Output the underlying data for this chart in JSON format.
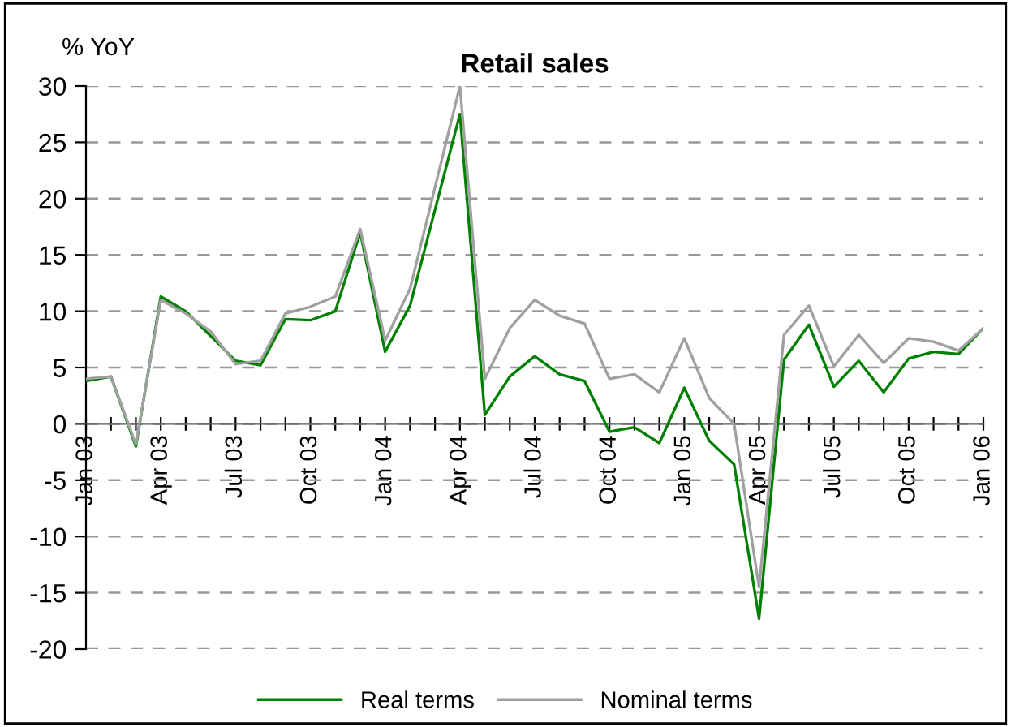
{
  "chart_data": {
    "type": "line",
    "title": "Retail sales",
    "ylabel": "% YoY",
    "categories": [
      "Jan 03",
      null,
      null,
      "Apr 03",
      null,
      null,
      "Jul 03",
      null,
      null,
      "Oct 03",
      null,
      null,
      "Jan 04",
      null,
      null,
      "Apr 04",
      null,
      null,
      "Jul 04",
      null,
      null,
      "Oct 04",
      null,
      null,
      "Jan 05",
      null,
      null,
      "Apr 05",
      null,
      null,
      "Jul 05",
      null,
      null,
      "Oct 05",
      null,
      null,
      "Jan 06"
    ],
    "series": [
      {
        "name": "Real terms",
        "color": "#008000",
        "values": [
          3.8,
          4.2,
          -2.0,
          11.3,
          10.0,
          7.8,
          5.6,
          5.2,
          9.3,
          9.2,
          10.0,
          17.0,
          6.4,
          10.5,
          19.0,
          27.5,
          0.8,
          4.2,
          6.0,
          4.4,
          3.8,
          -0.7,
          -0.3,
          -1.7,
          3.2,
          -1.5,
          -3.6,
          -17.3,
          5.7,
          8.8,
          3.3,
          5.6,
          2.8,
          5.8,
          6.4,
          6.2,
          8.5
        ]
      },
      {
        "name": "Nominal terms",
        "color": "#a0a0a0",
        "values": [
          4.0,
          4.2,
          -1.8,
          11.0,
          9.8,
          8.2,
          5.3,
          5.6,
          9.8,
          10.4,
          11.3,
          17.3,
          7.4,
          12.0,
          21.0,
          30.0,
          4.0,
          8.5,
          11.0,
          9.6,
          8.9,
          4.0,
          4.4,
          2.8,
          7.6,
          2.3,
          0.0,
          -14.5,
          7.9,
          10.5,
          5.1,
          7.9,
          5.4,
          7.6,
          7.3,
          6.5,
          8.5
        ]
      }
    ],
    "ylim": [
      -20,
      30
    ],
    "yticks": [
      -20,
      -15,
      -10,
      -5,
      0,
      5,
      10,
      15,
      20,
      25,
      30
    ],
    "grid": "y",
    "legend": "bottom",
    "marker": "none",
    "line_style": "solid"
  }
}
